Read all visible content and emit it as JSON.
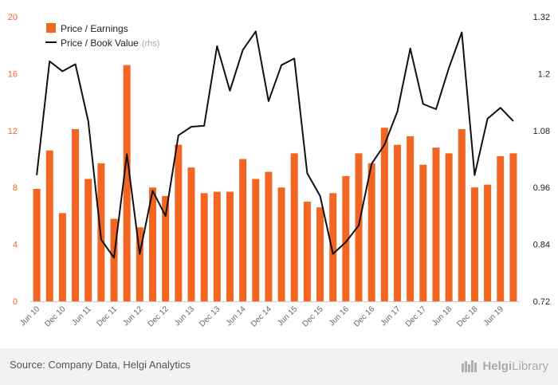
{
  "chart_data": {
    "type": "bar",
    "categories": [
      "Jun 10",
      "Sep 10",
      "Dec 10",
      "Mar 11",
      "Jun 11",
      "Sep 11",
      "Dec 11",
      "Mar 12",
      "Jun 12",
      "Sep 12",
      "Dec 12",
      "Mar 13",
      "Jun 13",
      "Sep 13",
      "Dec 13",
      "Mar 14",
      "Jun 14",
      "Sep 14",
      "Dec 14",
      "Mar 15",
      "Jun 15",
      "Sep 15",
      "Dec 15",
      "Mar 16",
      "Jun 16",
      "Sep 16",
      "Dec 16",
      "Mar 17",
      "Jun 17",
      "Sep 17",
      "Dec 17",
      "Mar 18",
      "Jun 18",
      "Sep 18",
      "Dec 18",
      "Mar 19",
      "Jun 19",
      "Sep 19"
    ],
    "x_tick_labels": [
      "Jun 10",
      "Dec 10",
      "Jun 11",
      "Dec 11",
      "Jun 12",
      "Dec 12",
      "Jun 13",
      "Dec 13",
      "Jun 14",
      "Dec 14",
      "Jun 15",
      "Dec 15",
      "Jun 16",
      "Dec 16",
      "Jun 17",
      "Dec 17",
      "Jun 18",
      "Dec 18",
      "Jun 19"
    ],
    "series": [
      {
        "name": "Price / Earnings",
        "type": "bar",
        "axis": "left",
        "color": "#f26522",
        "values": [
          7.9,
          10.6,
          6.2,
          12.1,
          8.6,
          9.7,
          5.8,
          16.6,
          5.2,
          8.0,
          7.4,
          11.0,
          9.4,
          7.6,
          7.7,
          7.7,
          10.0,
          8.6,
          9.1,
          8.0,
          10.4,
          7.0,
          6.6,
          7.6,
          8.8,
          10.4,
          9.7,
          12.2,
          11.0,
          11.6,
          9.6,
          10.8,
          10.4,
          12.1,
          8.0,
          8.2,
          10.2,
          10.4
        ]
      },
      {
        "name": "Price / Book Value",
        "type": "line",
        "axis": "right",
        "color": "#111111",
        "values": [
          0.986,
          1.226,
          1.205,
          1.22,
          1.1,
          0.85,
          0.812,
          1.03,
          0.82,
          0.953,
          0.9,
          1.07,
          1.088,
          1.09,
          1.258,
          1.164,
          1.25,
          1.289,
          1.142,
          1.218,
          1.232,
          0.99,
          0.942,
          0.82,
          0.845,
          0.88,
          1.01,
          1.05,
          1.12,
          1.253,
          1.136,
          1.125,
          1.212,
          1.287,
          0.986,
          1.105,
          1.128,
          1.1
        ]
      }
    ],
    "y_left": {
      "ylim": [
        0,
        20
      ],
      "ticks": [
        "0",
        "4",
        "8",
        "12",
        "16",
        "20"
      ]
    },
    "y_right": {
      "ylim": [
        0.72,
        1.32
      ],
      "ticks": [
        "0.72",
        "0.84",
        "0.96",
        "1.08",
        "1.2",
        "1.32"
      ]
    },
    "legend": {
      "placement": "top-left",
      "items": [
        {
          "label": "Price / Earnings",
          "note": ""
        },
        {
          "label": "Price / Book Value",
          "note": "(rhs)"
        }
      ]
    },
    "grid": false
  },
  "footer": {
    "source": "Source: Company Data, Helgi Analytics",
    "brand_a": "Helgi",
    "brand_b": "Library"
  }
}
